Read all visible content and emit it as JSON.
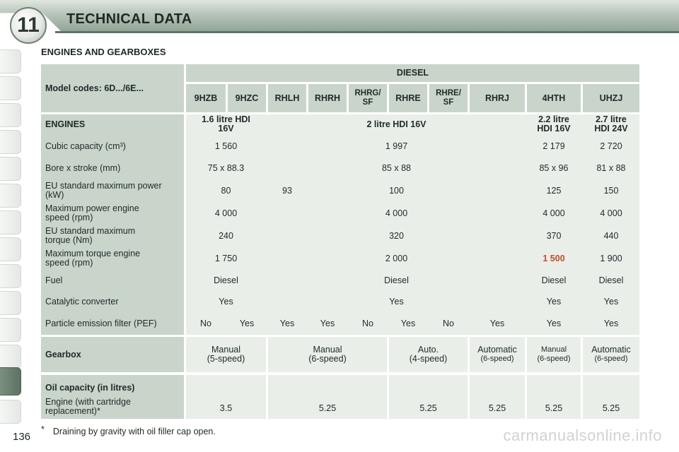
{
  "header": {
    "chapter_number": "11",
    "chapter_title": "TECHNICAL DATA"
  },
  "section_title": "ENGINES AND GEARBOXES",
  "table": {
    "model_codes_label": "Model codes: 6D.../6E...",
    "fuel_group_label": "DIESEL",
    "model_codes": [
      "9HZB",
      "9HZC",
      "RHLH",
      "RHRH",
      "RHRG/ SF",
      "RHRE",
      "RHRE/ SF",
      "RHRJ",
      "4HTH",
      "UHZJ"
    ],
    "engines_label": "ENGINES",
    "engine_names": [
      "1.6 litre HDI 16V",
      "2 litre HDI 16V",
      "2.2 litre HDI 16V",
      "2.7 litre HDI 24V"
    ],
    "rows": {
      "cubic": {
        "label": "Cubic capacity (cm³)",
        "values": [
          "1 560",
          "1 997",
          "2 179",
          "2 720"
        ]
      },
      "bore": {
        "label": "Bore x stroke (mm)",
        "values": [
          "75 x 88.3",
          "85 x 88",
          "85 x 96",
          "81 x 88"
        ]
      },
      "power": {
        "label": "EU standard maximum power (kW)",
        "values": [
          "80",
          "93",
          "100",
          "125",
          "150"
        ]
      },
      "power_speed": {
        "label": "Maximum power engine speed (rpm)",
        "values": [
          "4 000",
          "4 000",
          "4 000",
          "4 000"
        ]
      },
      "torque": {
        "label": "EU standard maximum torque (Nm)",
        "values": [
          "240",
          "320",
          "370",
          "440"
        ]
      },
      "torque_speed": {
        "label": "Maximum torque engine speed (rpm)",
        "values": [
          "1 750",
          "2 000",
          "1 500",
          "1 900"
        ]
      },
      "fuel": {
        "label": "Fuel",
        "values": [
          "Diesel",
          "Diesel",
          "Diesel",
          "Diesel"
        ]
      },
      "catalytic": {
        "label": "Catalytic converter",
        "values": [
          "Yes",
          "Yes",
          "Yes",
          "Yes"
        ]
      },
      "pef": {
        "label": "Particle emission filter (PEF)",
        "values": [
          "No",
          "Yes",
          "Yes",
          "Yes",
          "No",
          "Yes",
          "No",
          "Yes",
          "Yes",
          "Yes"
        ]
      }
    },
    "gearbox": {
      "label": "Gearbox",
      "values": [
        {
          "type": "Manual",
          "detail": "(5-speed)"
        },
        {
          "type": "Manual",
          "detail": "(6-speed)"
        },
        {
          "type": "Auto.",
          "detail": "(4-speed)"
        },
        {
          "type": "Automatic",
          "detail": "(6-speed)"
        },
        {
          "type": "Manual",
          "detail": "(6-speed)"
        },
        {
          "type": "Automatic",
          "detail": "(6-speed)"
        }
      ]
    },
    "oil": {
      "label": "Oil capacity (in litres)",
      "sublabel": "Engine (with cartridge replacement)*",
      "values": [
        "3.5",
        "5.25",
        "5.25",
        "5.25",
        "5.25",
        "5.25"
      ]
    }
  },
  "footnote": {
    "marker": "*",
    "text": "Draining by gravity with oil filler cap open."
  },
  "page_number": "136",
  "watermark": "carmanualsonline.info",
  "colors": {
    "header_green": "#8fa394",
    "cell_dark": "#c9d4ca",
    "cell_light": "#e9eee9",
    "highlight_red": "#c34a2c"
  }
}
